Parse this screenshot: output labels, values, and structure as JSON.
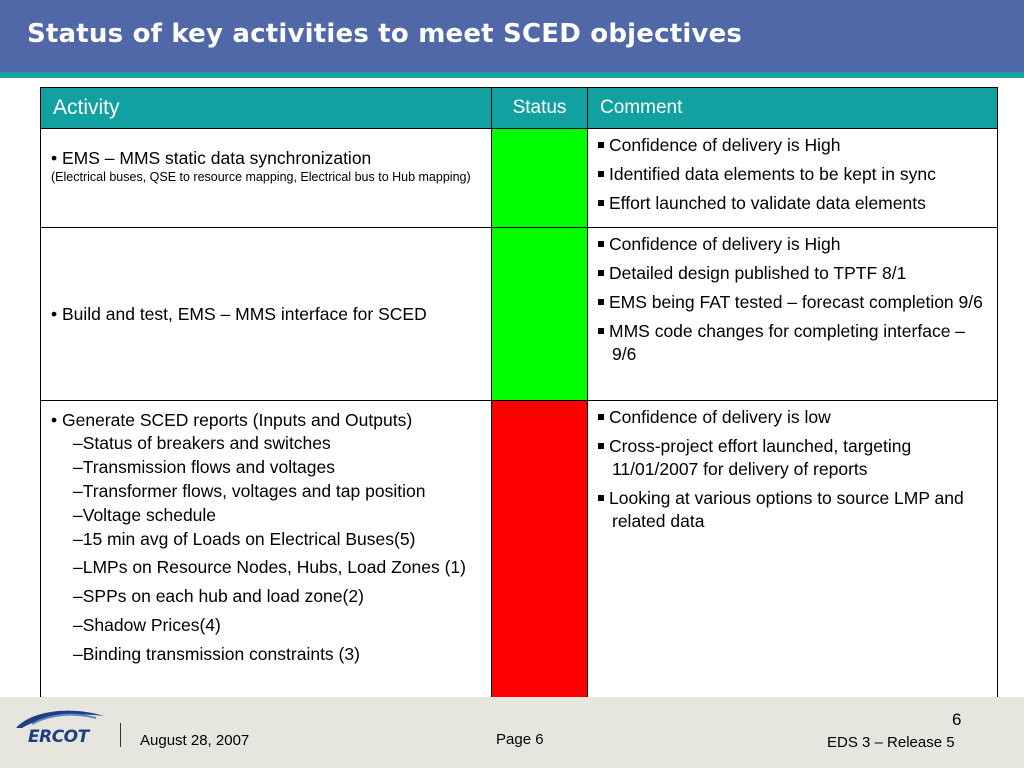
{
  "title": "Status of key activities to meet SCED objectives",
  "table": {
    "headers": {
      "activity": "Activity",
      "status": "Status",
      "comment": "Comment"
    },
    "rows": [
      {
        "activity": "• EMS – MMS static data synchronization",
        "activity_note": "(Electrical buses, QSE to resource mapping, Electrical bus to Hub mapping)",
        "status": "green",
        "comments": [
          "Confidence of delivery is High",
          "Identified data elements to be kept in sync",
          "Effort launched to validate data elements"
        ]
      },
      {
        "activity": "• Build and test, EMS – MMS interface for SCED",
        "status": "green",
        "comments": [
          "Confidence of delivery is High",
          "Detailed design published to TPTF 8/1",
          "EMS being FAT tested – forecast completion 9/6",
          "MMS code changes for completing interface – 9/6"
        ]
      },
      {
        "activity": "• Generate SCED reports (Inputs and Outputs)",
        "sub_items": [
          "–Status of breakers and switches",
          "–Transmission flows and voltages",
          "–Transformer flows, voltages and tap position",
          "–Voltage schedule",
          "–15 min avg of Loads on Electrical Buses(5)",
          "–LMPs on Resource Nodes, Hubs, Load Zones (1)",
          "–SPPs on each hub and load zone(2)",
          "–Shadow Prices(4)",
          "–Binding transmission constraints (3)"
        ],
        "status": "red",
        "comments": [
          "Confidence of delivery is low",
          "Cross-project effort launched, targeting 11/01/2007 for delivery of reports",
          "Looking at various options to source LMP and related data"
        ]
      }
    ]
  },
  "colors": {
    "title_bar": "#5068a8",
    "title_underline": "#1aa2a2",
    "header_bg": "#12a1a1",
    "status_green": "#00ff00",
    "status_red": "#ff0000",
    "footer_bg": "#e6e6de"
  },
  "footer": {
    "logo_text": "ERCOT",
    "date": "August 28, 2007",
    "page_label": "Page 6",
    "slide_number": "6",
    "release": "EDS 3 – Release 5"
  }
}
